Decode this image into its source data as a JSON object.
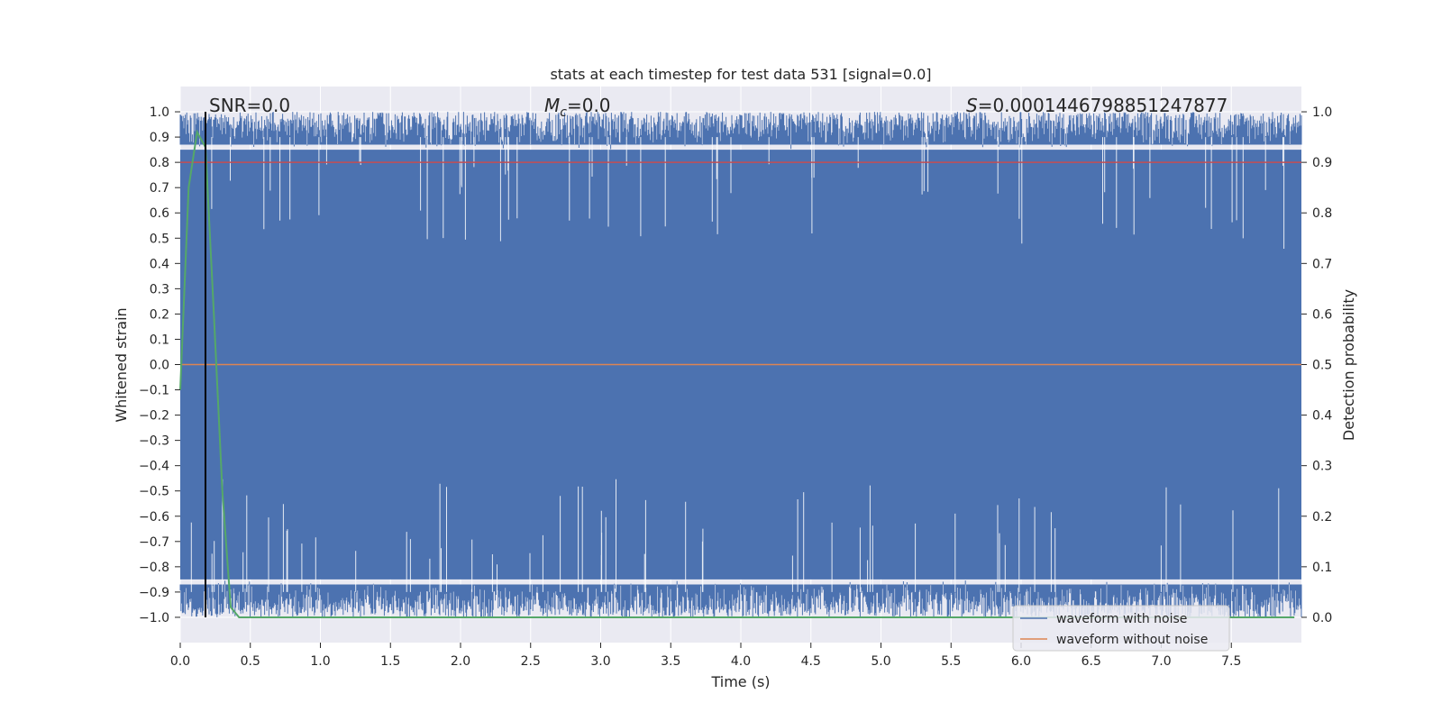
{
  "chart_data": {
    "type": "line",
    "title": "stats at each timestep for test data 531 [signal=0.0]",
    "xlabel": "Time (s)",
    "ylabel": "Whitened strain",
    "ylabel_right": "Detection probability",
    "xlim": [
      0.0,
      8.0
    ],
    "ylim": [
      -1.1,
      1.1
    ],
    "ylim_right": [
      -0.05,
      1.05
    ],
    "x_ticks": [
      0.0,
      0.5,
      1.0,
      1.5,
      2.0,
      2.5,
      3.0,
      3.5,
      4.0,
      4.5,
      5.0,
      5.5,
      6.0,
      6.5,
      7.0,
      7.5
    ],
    "x_tick_labels": [
      "0.0",
      "0.5",
      "1.0",
      "1.5",
      "2.0",
      "2.5",
      "3.0",
      "3.5",
      "4.0",
      "4.5",
      "5.0",
      "5.5",
      "6.0",
      "6.5",
      "7.0",
      "7.5"
    ],
    "y_ticks": [
      1.0,
      0.9,
      0.8,
      0.7,
      0.6,
      0.5,
      0.4,
      0.3,
      0.2,
      0.1,
      0.0,
      -0.1,
      -0.2,
      -0.3,
      -0.4,
      -0.5,
      -0.6,
      -0.7,
      -0.8,
      -0.9,
      -1.0
    ],
    "y_tick_labels": [
      "1.0",
      "0.9",
      "0.8",
      "0.7",
      "0.6",
      "0.5",
      "0.4",
      "0.3",
      "0.2",
      "0.1",
      "0.0",
      "−0.1",
      "−0.2",
      "−0.3",
      "−0.4",
      "−0.5",
      "−0.6",
      "−0.7",
      "−0.8",
      "−0.9",
      "−1.0"
    ],
    "y_ticks_right": [
      1.0,
      0.9,
      0.8,
      0.7,
      0.6,
      0.5,
      0.4,
      0.3,
      0.2,
      0.1,
      0.0
    ],
    "y_tick_labels_right": [
      "1.0",
      "0.9",
      "0.8",
      "0.7",
      "0.6",
      "0.5",
      "0.4",
      "0.3",
      "0.2",
      "0.1",
      "0.0"
    ],
    "grid": true,
    "legend_position": "bottom-right",
    "series": [
      {
        "name": "waveform with noise",
        "color": "#4c72b0",
        "style": "noise-band",
        "upper_range": [
          0.85,
          1.0
        ],
        "lower_range": [
          -1.0,
          -0.85
        ],
        "x_range": [
          0.0,
          8.0
        ]
      },
      {
        "name": "waveform without noise",
        "color": "#dd8452",
        "x": [
          0.0,
          8.0
        ],
        "y": [
          0.0,
          0.0
        ]
      }
    ],
    "detection_probability": {
      "color": "#55a868",
      "x": [
        0.0,
        0.06,
        0.12,
        0.18,
        0.24,
        0.3,
        0.36,
        0.42,
        1.0,
        2.0,
        3.0,
        4.0,
        5.0,
        6.0,
        7.0,
        7.95
      ],
      "y": [
        0.45,
        0.85,
        0.96,
        0.93,
        0.6,
        0.25,
        0.02,
        0.0,
        0.0,
        0.0,
        0.0,
        0.0,
        0.0,
        0.0,
        0.0,
        0.0
      ]
    },
    "threshold": {
      "color": "#c44e52",
      "value": 0.9
    },
    "event_marker": {
      "color": "#000000",
      "x": 0.18
    },
    "annotations": {
      "snr": "SNR=0.0",
      "mc_symbol": "M",
      "mc_sub": "c",
      "mc_value": "=0.0",
      "s_symbol": "S",
      "s_value": "=0.0001446798851247877"
    }
  }
}
